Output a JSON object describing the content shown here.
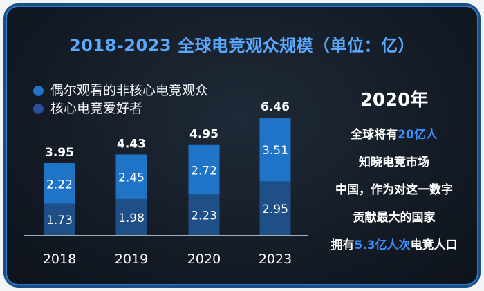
{
  "title": "2018-2023 全球电竞观众规模（单位：亿）",
  "legend": [
    {
      "label": "偶尔观看的非核心电竞观众",
      "color": "#1f74c8"
    },
    {
      "label": "核心电竞爱好者",
      "color": "#1e4f86"
    }
  ],
  "side": {
    "year": "2020年",
    "line1_pre": "全球将有",
    "line1_hl": "20亿人",
    "line2": "知晓电竞市场",
    "line3": "中国，作为对这一数字",
    "line4": "贡献最大的国家",
    "line5_pre": "拥有",
    "line5_hl": "5.3亿人次",
    "line5_post": "电竞人口"
  },
  "chart_data": {
    "type": "bar",
    "stacked": true,
    "title": "2018-2023 全球电竞观众规模（单位：亿）",
    "categories": [
      "2018",
      "2019",
      "2020",
      "2023"
    ],
    "series": [
      {
        "name": "核心电竞爱好者",
        "values": [
          1.73,
          1.98,
          2.23,
          2.95
        ],
        "color": "#1e4f86"
      },
      {
        "name": "偶尔观看的非核心电竞观众",
        "values": [
          2.22,
          2.45,
          2.72,
          3.51
        ],
        "color": "#1f74c8"
      }
    ],
    "totals": [
      "3.95",
      "4.43",
      "4.95",
      "6.46"
    ],
    "value_labels": [
      [
        "1.73",
        "1.98",
        "2.23",
        "2.95"
      ],
      [
        "2.22",
        "2.45",
        "2.72",
        "3.51"
      ]
    ],
    "ylim": [
      0,
      6.46
    ]
  }
}
